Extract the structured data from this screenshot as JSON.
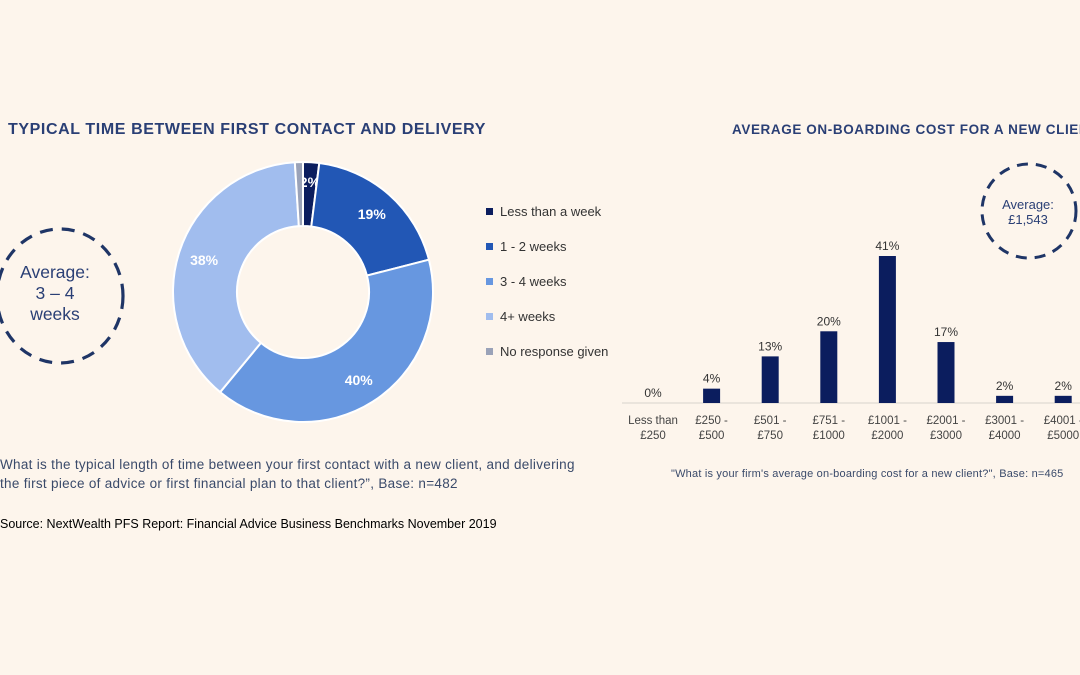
{
  "chart_data": [
    {
      "type": "pie",
      "title": "TYPICAL TIME BETWEEN FIRST CONTACT AND DELIVERY",
      "categories": [
        "Less than a week",
        "1 - 2 weeks",
        "3 - 4 weeks",
        "4+ weeks",
        "No response given"
      ],
      "values": [
        2,
        19,
        40,
        38,
        1
      ],
      "data_labels": [
        "2%",
        "19%",
        "40%",
        "38%",
        ""
      ],
      "colors": [
        "#0b1d5e",
        "#2257b5",
        "#6797e0",
        "#a1bdee",
        "#9aa2b8"
      ],
      "legend_position": "right",
      "average_label": "Average:",
      "average_value_line1": "3 – 4",
      "average_value_line2": "weeks",
      "question_line1": "What is the typical length of time between your first contact with a new client, and delivering",
      "question_line2": "the first piece of advice or first financial plan to that client?”, Base: n=482",
      "source": "Source: NextWealth PFS Report: Financial Advice Business Benchmarks November 2019"
    },
    {
      "type": "bar",
      "title": "AVERAGE ON-BOARDING COST FOR A NEW CLIENT",
      "categories": [
        [
          "Less than",
          "£250"
        ],
        [
          "£250 -",
          "£500"
        ],
        [
          "£501 -",
          "£750"
        ],
        [
          "£751 -",
          "£1000"
        ],
        [
          "£1001 -",
          "£2000"
        ],
        [
          "£2001 -",
          "£3000"
        ],
        [
          "£3001 -",
          "£4000"
        ],
        [
          "£4001 -",
          "£5000"
        ]
      ],
      "values": [
        0,
        4,
        13,
        20,
        41,
        17,
        2,
        2
      ],
      "data_labels": [
        "0%",
        "4%",
        "13%",
        "20%",
        "41%",
        "17%",
        "2%",
        "2%"
      ],
      "bar_color": "#0b1d5e",
      "ylim": [
        0,
        41
      ],
      "grid": false,
      "average_label": "Average:",
      "average_value": "£1,543",
      "question": "\"What is your firm's average on-boarding cost for a new client?\", Base: n=465"
    }
  ]
}
